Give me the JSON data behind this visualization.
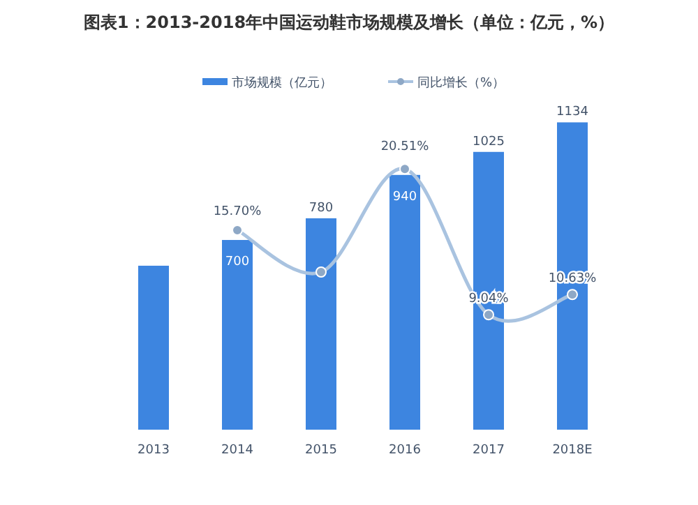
{
  "chart_data": {
    "type": "bar",
    "title": "图表1：2013-2018年中国运动鞋市场规模及增长（单位：亿元，%）",
    "categories": [
      "2013",
      "2014",
      "2015",
      "2016",
      "2017",
      "2018E"
    ],
    "legend": "top",
    "series": [
      {
        "name": "市场规模（亿元）",
        "color": "#3d85e0",
        "values": [
          605,
          700,
          780,
          940,
          1025,
          1134
        ],
        "value_labels": [
          null,
          "700",
          "780",
          "940",
          "1025",
          "1134"
        ]
      },
      {
        "name": "同比增长（%）",
        "type": "line",
        "axis": "y2",
        "color": "#a9c3e0",
        "marker": "circle",
        "values": [
          null,
          15.7,
          12.4,
          20.51,
          9.04,
          10.63
        ],
        "value_labels": [
          null,
          "15.70%",
          null,
          "20.51%",
          "9.04%",
          "10.63%"
        ]
      }
    ]
  }
}
